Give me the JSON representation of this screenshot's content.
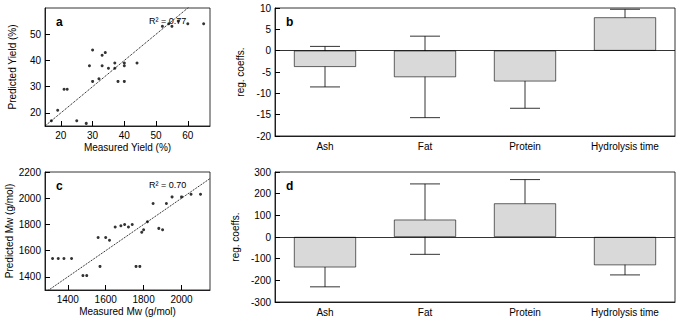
{
  "chart_data": [
    {
      "type": "scatter",
      "title": "a",
      "annotations": [
        "R² = 0.77"
      ],
      "x_label": "Measured Yield (%)",
      "y_label": "Predicted Yield (%)",
      "x": [
        17,
        19,
        21,
        22,
        25,
        28,
        29,
        30,
        30,
        32,
        33,
        33,
        34,
        35,
        37,
        37,
        38,
        40,
        40,
        40,
        44,
        52,
        54,
        55,
        57,
        60,
        65
      ],
      "values": [
        17,
        21,
        29,
        29,
        17,
        16,
        38,
        44,
        32,
        33,
        38,
        42,
        43,
        37,
        37,
        39,
        32,
        32,
        38,
        39,
        39,
        53,
        54,
        53,
        55,
        54,
        54
      ],
      "color": "#000000",
      "marker": "circle",
      "fit_line": {
        "x": [
          15,
          67
        ],
        "values": [
          15,
          67
        ],
        "line_style": "dotted"
      },
      "xlim": [
        15,
        67
      ],
      "xticks": [
        20,
        30,
        40,
        50,
        60
      ],
      "ylim": [
        15,
        60
      ],
      "yticks": [
        20,
        30,
        40,
        50
      ],
      "grid": false
    },
    {
      "type": "bar",
      "title": "b",
      "y_label": "reg. coeffs.",
      "categories": [
        "Ash",
        "Fat",
        "Protein",
        "Hydrolysis time"
      ],
      "values": [
        -3.8,
        -6.2,
        -7.2,
        7.8
      ],
      "error_low": [
        -8.5,
        -15.7,
        -13.5,
        5.9
      ],
      "error_high": [
        1.0,
        3.4,
        -0.8,
        9.7
      ],
      "color": "#d9d9d9",
      "ylim": [
        -20,
        10
      ],
      "yticks": [
        -20,
        -15,
        -10,
        -5,
        0,
        5,
        10
      ],
      "grid": false
    },
    {
      "type": "scatter",
      "title": "c",
      "annotations": [
        "R² = 0.70"
      ],
      "x_label": "Measured Mw (g/mol)",
      "y_label": "Predicted Mw (g/mol)",
      "x": [
        1320,
        1350,
        1380,
        1420,
        1480,
        1500,
        1560,
        1570,
        1600,
        1620,
        1650,
        1680,
        1700,
        1720,
        1740,
        1760,
        1780,
        1790,
        1800,
        1820,
        1850,
        1880,
        1900,
        1920,
        1950,
        2000,
        2050,
        2100
      ],
      "values": [
        1540,
        1540,
        1540,
        1540,
        1410,
        1410,
        1700,
        1480,
        1700,
        1680,
        1780,
        1790,
        1800,
        1780,
        1800,
        1480,
        1480,
        1740,
        1760,
        1820,
        1960,
        1770,
        1760,
        1960,
        2010,
        2010,
        2030,
        2030
      ],
      "color": "#000000",
      "marker": "circle",
      "fit_line": {
        "x": [
          1280,
          2150
        ],
        "values": [
          1280,
          2150
        ],
        "line_style": "dotted"
      },
      "xlim": [
        1280,
        2150
      ],
      "xticks": [
        1400,
        1600,
        1800,
        2000
      ],
      "ylim": [
        1300,
        2200
      ],
      "yticks": [
        1400,
        1600,
        1800,
        2000,
        2200
      ],
      "grid": false
    },
    {
      "type": "bar",
      "title": "d",
      "y_label": "reg. coeffs.",
      "categories": [
        "Ash",
        "Fat",
        "Protein",
        "Hydrolysis time"
      ],
      "values": [
        -140,
        80,
        155,
        -130
      ],
      "error_low": [
        -230,
        -80,
        45,
        -175
      ],
      "error_high": [
        -50,
        245,
        265,
        -80
      ],
      "color": "#d9d9d9",
      "ylim": [
        -300,
        300
      ],
      "yticks": [
        -300,
        -200,
        -100,
        0,
        100,
        200,
        300
      ],
      "grid": false
    }
  ]
}
